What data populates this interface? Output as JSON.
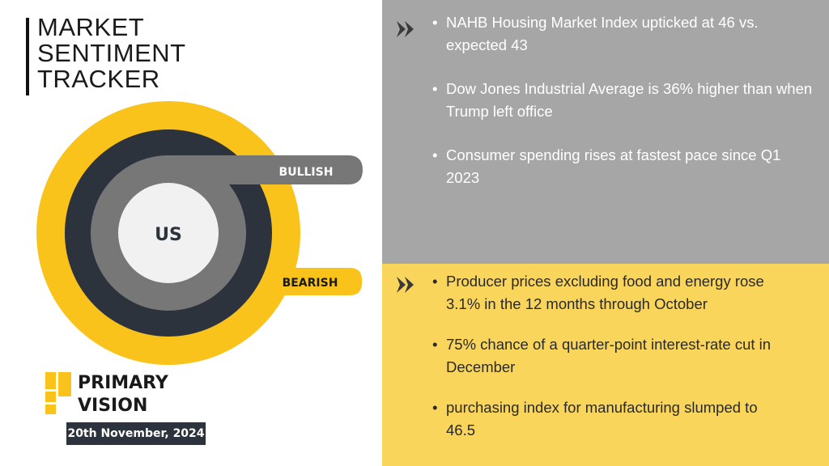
{
  "header": {
    "title_lines": [
      "MARKET",
      "SENTIMENT",
      "TRACKER"
    ]
  },
  "gauge": {
    "center_label": "US",
    "bullish_label": "BULLISH",
    "bearish_label": "BEARISH",
    "colors": {
      "yellow": "#f9c31b",
      "navy": "#2d333d",
      "grey": "#777777",
      "center": "#f1f1f1"
    }
  },
  "brand": {
    "name_lines": [
      "PRIMARY",
      "VISION"
    ],
    "logo": "primary-vision-logo",
    "color": "#f9c31b"
  },
  "date": "20th November, 2024",
  "bullish_panel": {
    "color": "#a6a6a6",
    "icon": "double-chevron-right-icon",
    "items": [
      "NAHB Housing Market Index upticked at 46 vs. expected 43",
      "Dow Jones Industrial Average is 36% higher than when Trump left office",
      "Consumer spending rises at fastest pace since Q1 2023"
    ]
  },
  "bearish_panel": {
    "color": "#fad55c",
    "icon": "double-chevron-right-icon",
    "items": [
      "Producer prices excluding food and energy rose 3.1% in the 12 months through October",
      "75% chance of a quarter-point interest-rate cut in December",
      "purchasing index for manufacturing slumped to 46.5"
    ]
  }
}
